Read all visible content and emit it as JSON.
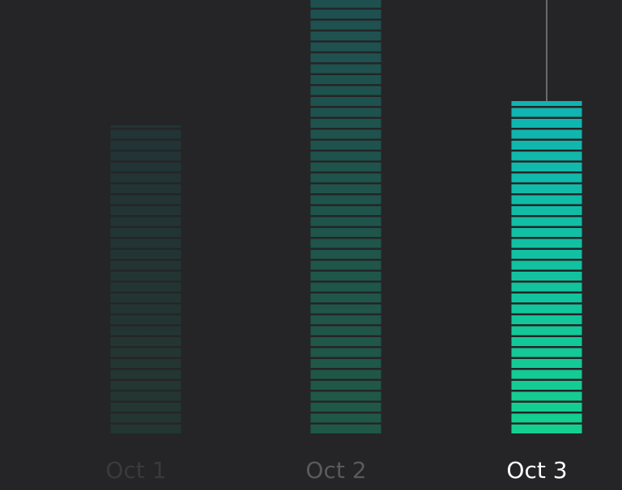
{
  "chart_data": {
    "type": "bar",
    "categories": [
      "Oct 1",
      "Oct 2",
      "Oct 3"
    ],
    "values": [
      382,
      560,
      412
    ]
  }
}
